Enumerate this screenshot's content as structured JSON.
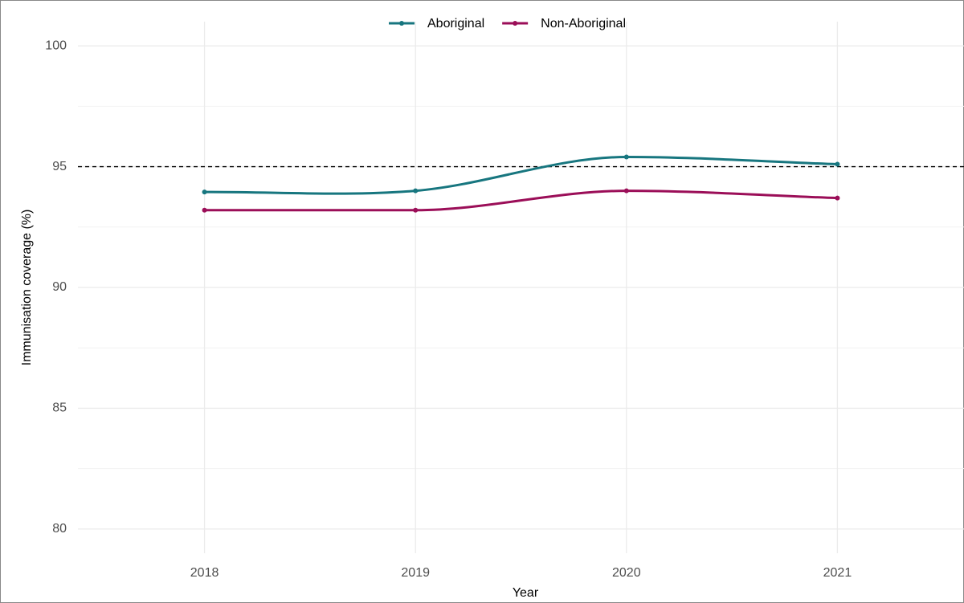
{
  "chart_data": {
    "type": "line",
    "x_label": "Year",
    "y_label": "Immunisation coverage (%)",
    "x": [
      2018,
      2019,
      2020,
      2021
    ],
    "series": [
      {
        "name": "Aboriginal",
        "color": "#17767f",
        "values": [
          93.95,
          94.0,
          95.4,
          95.1
        ]
      },
      {
        "name": "Non-Aboriginal",
        "color": "#9b0e58",
        "values": [
          93.2,
          93.2,
          94.0,
          93.7
        ]
      }
    ],
    "xlim": [
      2017.4,
      2021.6
    ],
    "xticks": [
      2018,
      2019,
      2020,
      2021
    ],
    "ylim": [
      79,
      101
    ],
    "yticks": [
      80,
      85,
      90,
      95,
      100
    ],
    "y_minor_ticks": [
      82.5,
      87.5,
      92.5,
      97.5
    ],
    "hline": 95,
    "grid": true,
    "legend": "top"
  }
}
